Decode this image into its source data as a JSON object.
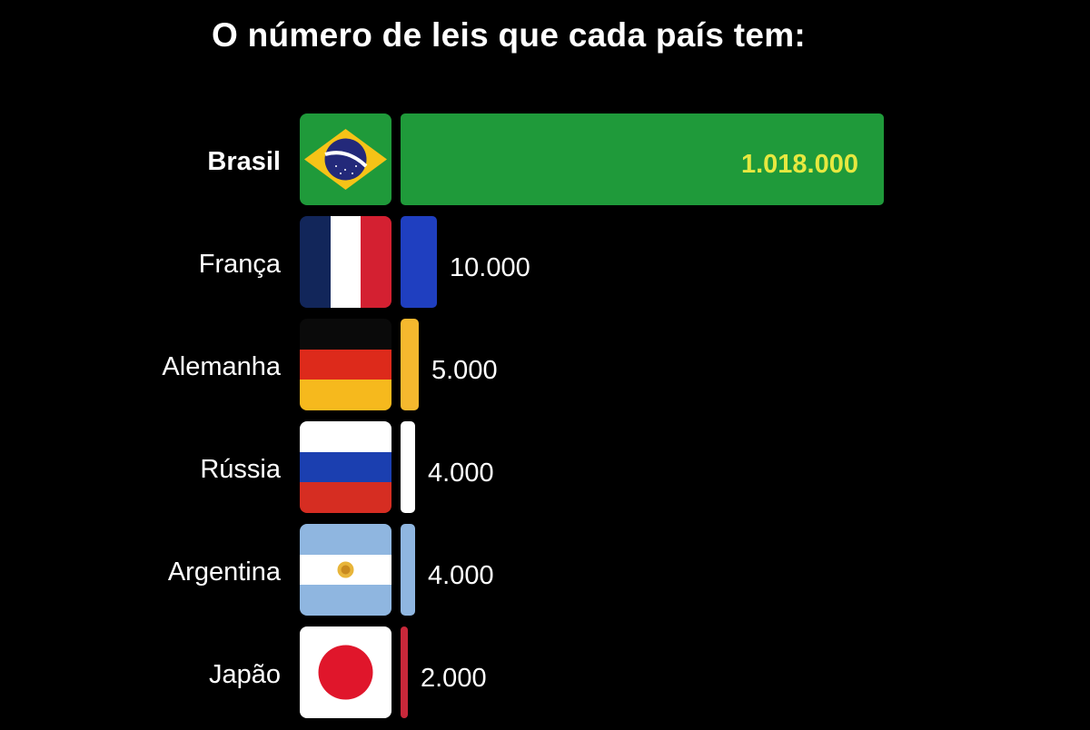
{
  "title": "O número de leis que cada país tem:",
  "chart_data": {
    "type": "bar",
    "orientation": "horizontal",
    "title": "O número de leis que cada país tem:",
    "categories": [
      "Brasil",
      "França",
      "Alemanha",
      "Rússia",
      "Argentina",
      "Japão"
    ],
    "values": [
      1018000,
      10000,
      5000,
      4000,
      4000,
      2000
    ],
    "value_labels": [
      "1.018.000",
      "10.000",
      "5.000",
      "4.000",
      "4.000",
      "2.000"
    ],
    "flags": [
      "brazil-flag",
      "france-flag",
      "germany-flag",
      "russia-flag",
      "argentina-flag",
      "japan-flag"
    ],
    "colors": [
      "#1f9a3a",
      "#1f3fc0",
      "#f5b82e",
      "#ffffff",
      "#8fb6e0",
      "#c8283a"
    ],
    "value_label_color_highlight": "#e6e840",
    "highlighted": "Brasil",
    "grid": false,
    "legend": "none"
  }
}
